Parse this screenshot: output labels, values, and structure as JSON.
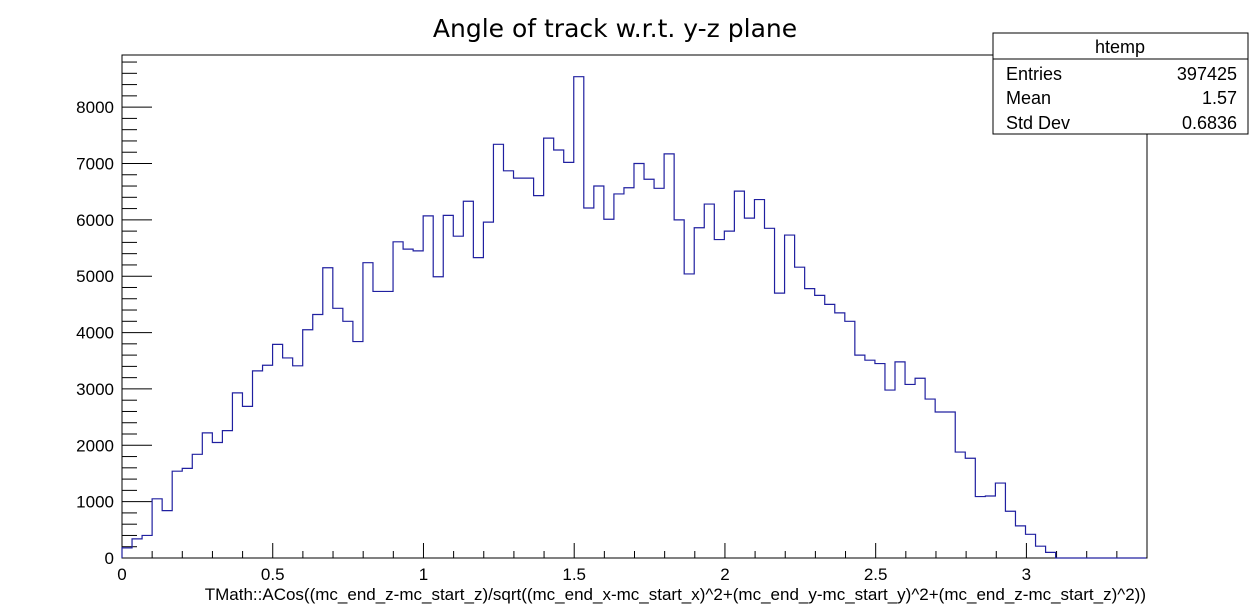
{
  "chart_data": {
    "type": "histogram",
    "title": "Angle of track w.r.t. y-z plane",
    "xlabel": "TMath::ACos((mc_end_z-mc_start_z)/sqrt((mc_end_x-mc_start_x)^2+(mc_end_y-mc_start_y)^2+(mc_end_z-mc_start_z)^2))",
    "ylabel": "",
    "xlim": [
      0,
      3.4
    ],
    "ylim": [
      0,
      8925
    ],
    "bin_width": 0.0333,
    "x_ticks": [
      0,
      0.5,
      1,
      1.5,
      2,
      2.5,
      3
    ],
    "x_tick_labels": [
      "0",
      "0.5",
      "1",
      "1.5",
      "2",
      "2.5",
      "3"
    ],
    "y_ticks": [
      0,
      1000,
      2000,
      3000,
      4000,
      5000,
      6000,
      7000,
      8000
    ],
    "y_tick_labels": [
      "0",
      "1000",
      "2000",
      "3000",
      "4000",
      "5000",
      "6000",
      "7000",
      "8000"
    ],
    "line_color": "#2020a0",
    "values": [
      180,
      340,
      400,
      1050,
      840,
      1540,
      1590,
      1840,
      2220,
      2050,
      2260,
      2930,
      2690,
      3320,
      3420,
      3790,
      3550,
      3410,
      4050,
      4320,
      5150,
      4430,
      4200,
      3840,
      5240,
      4730,
      4730,
      5610,
      5480,
      5450,
      6070,
      4990,
      6080,
      5710,
      6330,
      5330,
      5960,
      7340,
      6870,
      6740,
      6740,
      6430,
      7450,
      7240,
      7020,
      8540,
      6210,
      6600,
      6010,
      6460,
      6570,
      7000,
      6720,
      6560,
      7170,
      6000,
      5040,
      5860,
      6280,
      5650,
      5800,
      6510,
      6030,
      6360,
      5850,
      4700,
      5730,
      5160,
      4780,
      4660,
      4500,
      4350,
      4200,
      3600,
      3510,
      3450,
      2980,
      3480,
      3080,
      3190,
      2820,
      2590,
      2590,
      1880,
      1770,
      1090,
      1100,
      1330,
      830,
      570,
      420,
      210,
      100,
      0,
      0,
      0,
      0,
      0,
      0,
      0,
      0,
      0
    ]
  },
  "stats_box": {
    "name": "htemp",
    "rows": [
      {
        "label": "Entries",
        "value": "397425"
      },
      {
        "label": "Mean",
        "value": "1.57"
      },
      {
        "label": "Std Dev",
        "value": "0.6836"
      }
    ]
  }
}
